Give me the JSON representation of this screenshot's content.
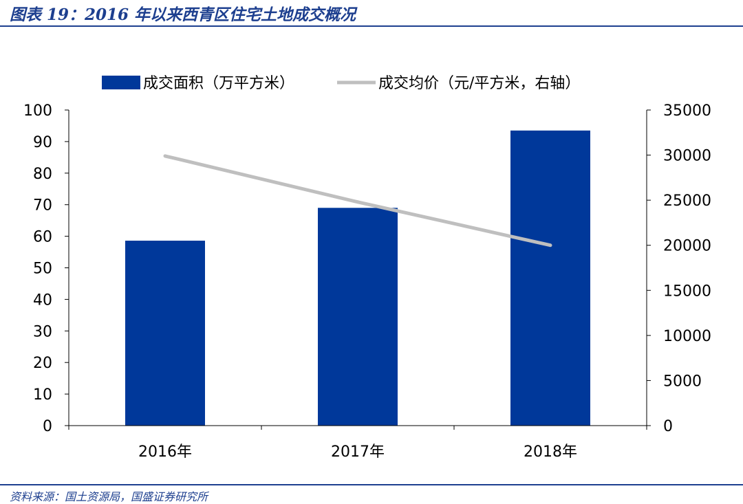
{
  "header": {
    "title": "图表 19：2016 年以来西青区住宅土地成交概况"
  },
  "footer": {
    "source": "资料来源：国土资源局，国盛证券研究所"
  },
  "chart_data": {
    "type": "bar",
    "categories": [
      "2016年",
      "2017年",
      "2018年"
    ],
    "series": [
      {
        "name": "成交面积（万平方米）",
        "type": "bar",
        "axis": "left",
        "color": "#00389a",
        "values": [
          58.6,
          69.0,
          93.5
        ]
      },
      {
        "name": "成交均价（元/平方米，右轴）",
        "type": "line",
        "axis": "right",
        "color": "#bfbfbf",
        "values": [
          29900,
          24800,
          20000
        ]
      }
    ],
    "left_axis": {
      "ylim": [
        0,
        100
      ],
      "ticks": [
        "0",
        "10",
        "20",
        "30",
        "40",
        "50",
        "60",
        "70",
        "80",
        "90",
        "100"
      ]
    },
    "right_axis": {
      "ylim": [
        0,
        35000
      ],
      "ticks": [
        "0",
        "5000",
        "10000",
        "15000",
        "20000",
        "25000",
        "30000",
        "35000"
      ]
    },
    "legend_position": "top",
    "grid": false
  }
}
